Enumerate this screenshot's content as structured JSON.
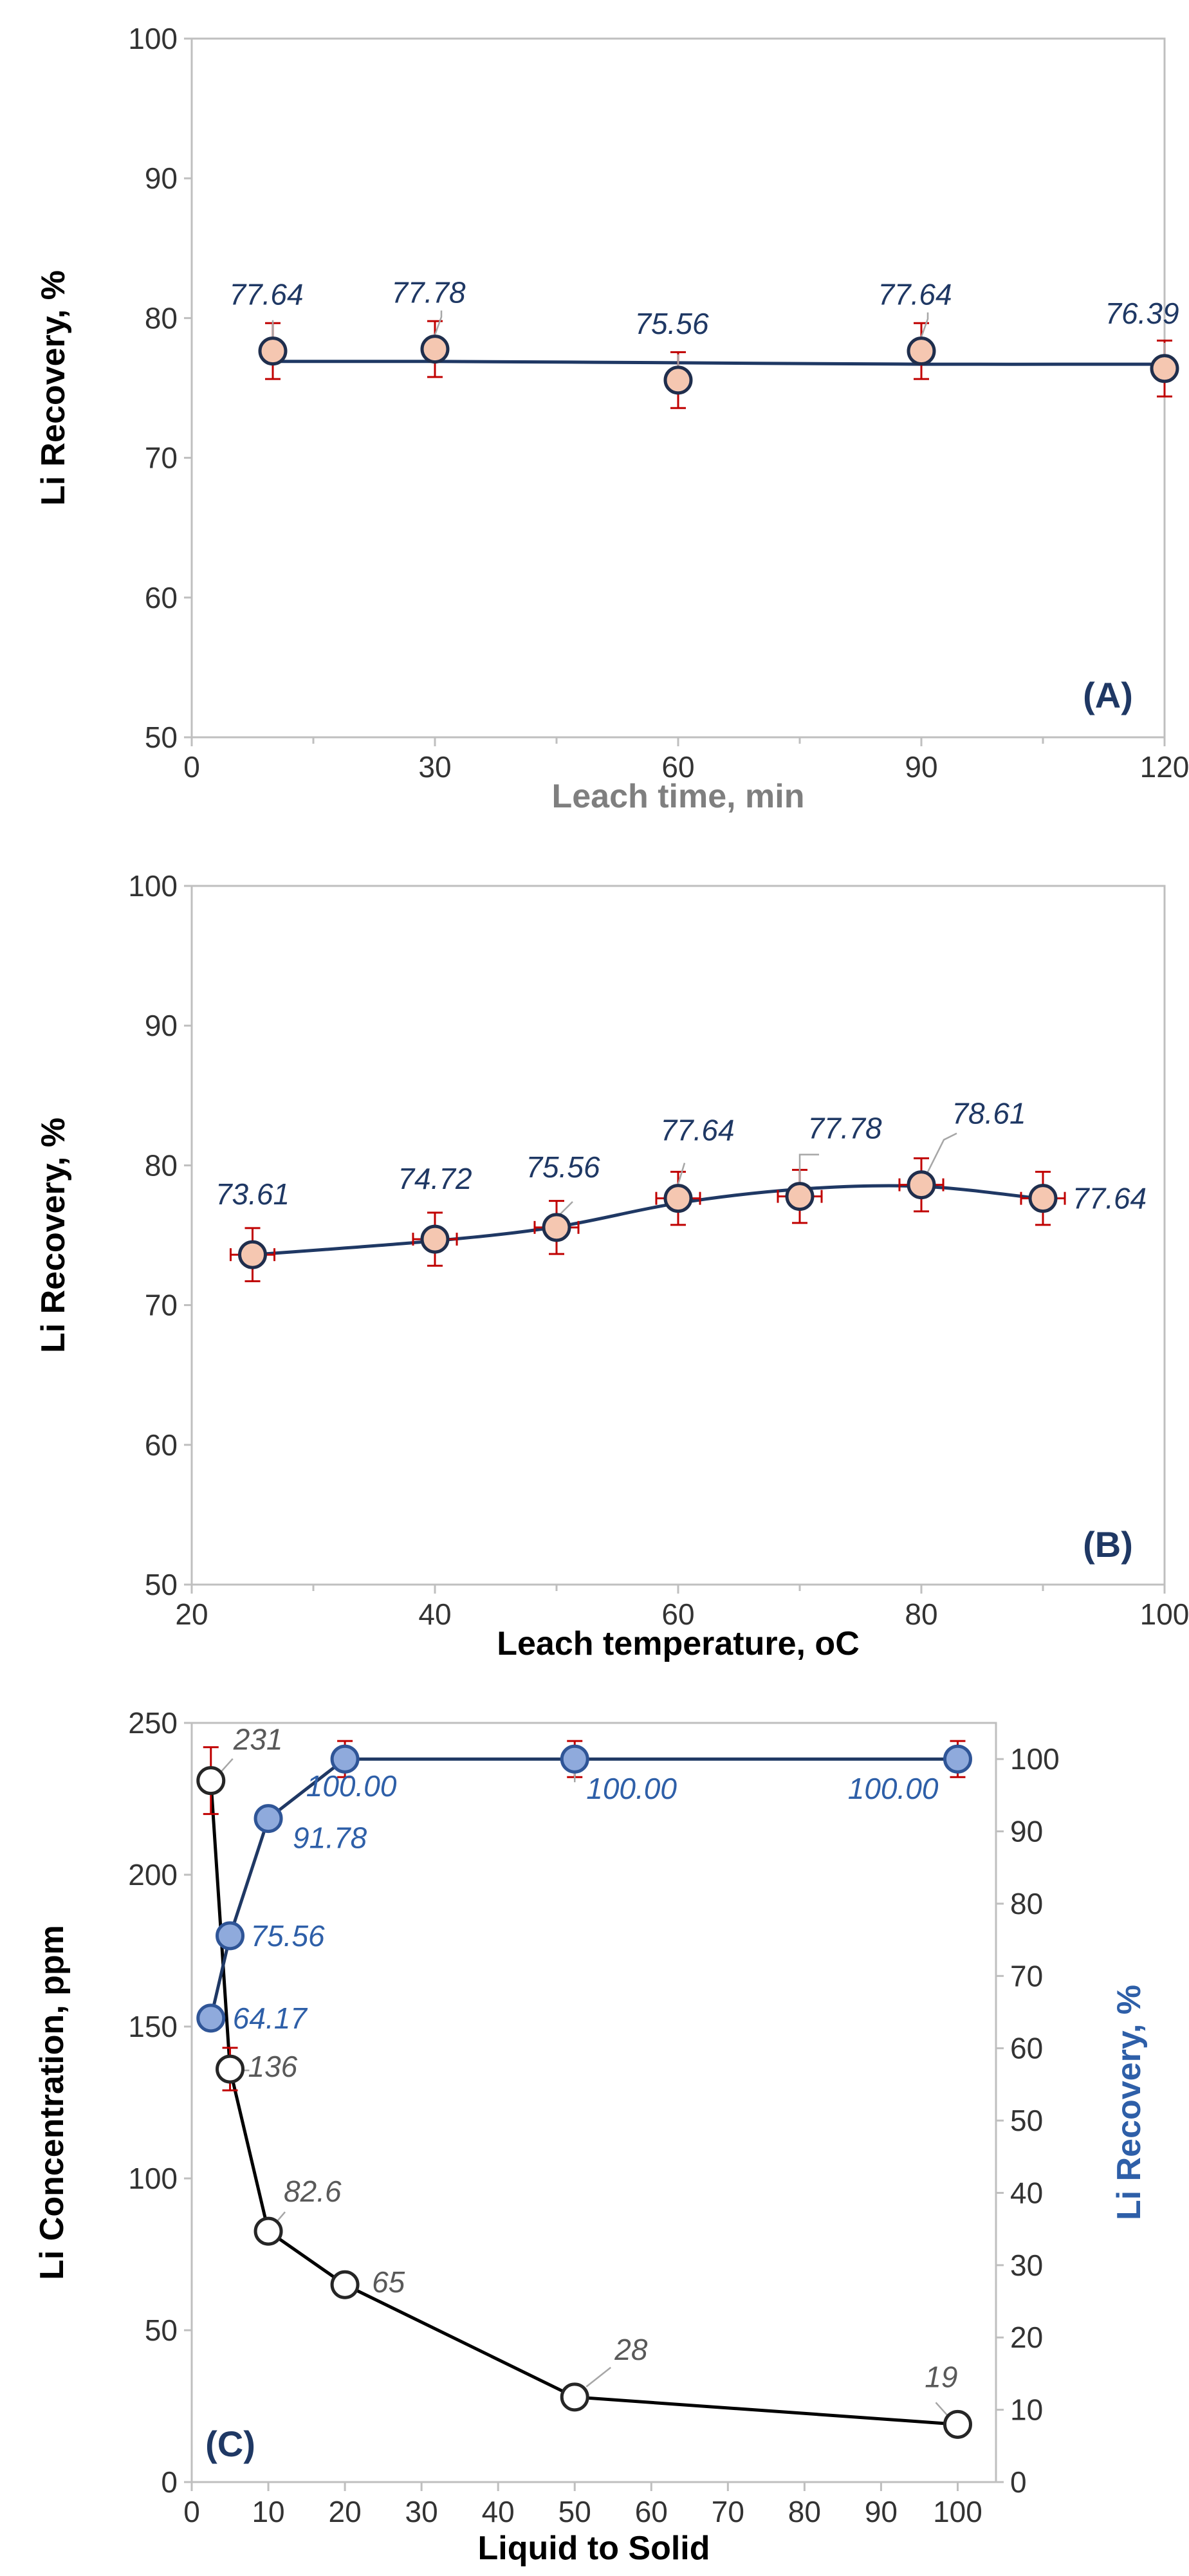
{
  "figure": {
    "panels_count": 3
  },
  "chart_data": [
    {
      "type": "line",
      "panel_label": "(A)",
      "xlabel": "Leach time, min",
      "ylabel": "Li Recovery, %",
      "xlim": [
        0,
        120
      ],
      "ylim": [
        50,
        100
      ],
      "xticks": [
        0,
        30,
        60,
        90,
        120
      ],
      "yticks": [
        50,
        60,
        70,
        80,
        90,
        100
      ],
      "colors": {
        "marker_fill": "#f5c7b1",
        "marker_edge": "#1f2e4d",
        "line": "#1f3864",
        "label": "#1f3864",
        "error": "#c00000",
        "xlabel": "#7f7f7f"
      },
      "series": [
        {
          "name": "Li Recovery",
          "x": [
            10,
            30,
            60,
            90,
            120
          ],
          "y": [
            77.64,
            77.78,
            75.56,
            77.64,
            76.39
          ],
          "labels": [
            "77.64",
            "77.78",
            "75.56",
            "77.64",
            "76.39"
          ],
          "y_error": 2,
          "trend": [
            76.9,
            76.9,
            76.8,
            76.7,
            76.7
          ]
        }
      ]
    },
    {
      "type": "line",
      "panel_label": "(B)",
      "xlabel": "Leach temperature, oC",
      "ylabel": "Li Recovery, %",
      "xlim": [
        20,
        100
      ],
      "ylim": [
        50,
        100
      ],
      "xticks": [
        20,
        40,
        60,
        80,
        100
      ],
      "yticks": [
        50,
        60,
        70,
        80,
        90,
        100
      ],
      "colors": {
        "marker_fill": "#f5c7b1",
        "marker_edge": "#1f2e4d",
        "line": "#1f3864",
        "label": "#1f3864",
        "error": "#c00000",
        "xlabel": "#000000"
      },
      "series": [
        {
          "name": "Li Recovery",
          "x": [
            25,
            40,
            50,
            60,
            70,
            80,
            90
          ],
          "y": [
            73.61,
            74.72,
            75.56,
            77.64,
            77.78,
            78.61,
            77.64
          ],
          "labels": [
            "73.61",
            "74.72",
            "75.56",
            "77.64",
            "77.78",
            "78.61",
            "77.64"
          ],
          "y_error": 1.9,
          "x_error": 1.8,
          "trend": [
            73.6,
            74.6,
            75.6,
            77.3,
            78.3,
            78.5,
            77.6
          ]
        }
      ]
    },
    {
      "type": "line",
      "panel_label": "(C)",
      "xlabel": "Liquid to Solid",
      "ylabel": "Li Concentration, ppm",
      "ylabel_right": "Li Recovery, %",
      "xlim": [
        0,
        105
      ],
      "ylim": [
        0,
        250
      ],
      "ylim_right": [
        0,
        105
      ],
      "xticks": [
        0,
        10,
        20,
        30,
        40,
        50,
        60,
        70,
        80,
        90,
        100
      ],
      "yticks": [
        0,
        50,
        100,
        150,
        200,
        250
      ],
      "yticks_right": [
        0,
        10,
        20,
        30,
        40,
        50,
        60,
        70,
        80,
        90,
        100
      ],
      "colors": {
        "conc_fill": "#ffffff",
        "conc_edge": "#262626",
        "conc_line": "#000000",
        "conc_label": "#595959",
        "rec_fill": "#8faadc",
        "rec_edge": "#2f5597",
        "rec_line": "#1f3864",
        "rec_label": "#2e5fa8",
        "error": "#c00000"
      },
      "series": [
        {
          "name": "Li Concentration",
          "axis": "left",
          "x": [
            2.5,
            5,
            10,
            20,
            50,
            100
          ],
          "y": [
            231,
            136,
            82.6,
            65,
            28,
            19
          ],
          "labels": [
            "231",
            "136",
            "82.6",
            "65",
            "28",
            "19"
          ],
          "y_error": [
            11,
            7,
            0,
            0,
            0,
            0
          ]
        },
        {
          "name": "Li Recovery",
          "axis": "right",
          "x": [
            2.5,
            5,
            10,
            20,
            50,
            100
          ],
          "y": [
            64.17,
            75.56,
            91.78,
            100.0,
            100.0,
            100.0
          ],
          "labels": [
            "64.17",
            "75.56",
            "91.78",
            "100.00",
            "100.00",
            "100.00"
          ],
          "y_error": [
            0,
            0,
            0,
            2.5,
            2.5,
            2.5
          ]
        }
      ]
    }
  ]
}
